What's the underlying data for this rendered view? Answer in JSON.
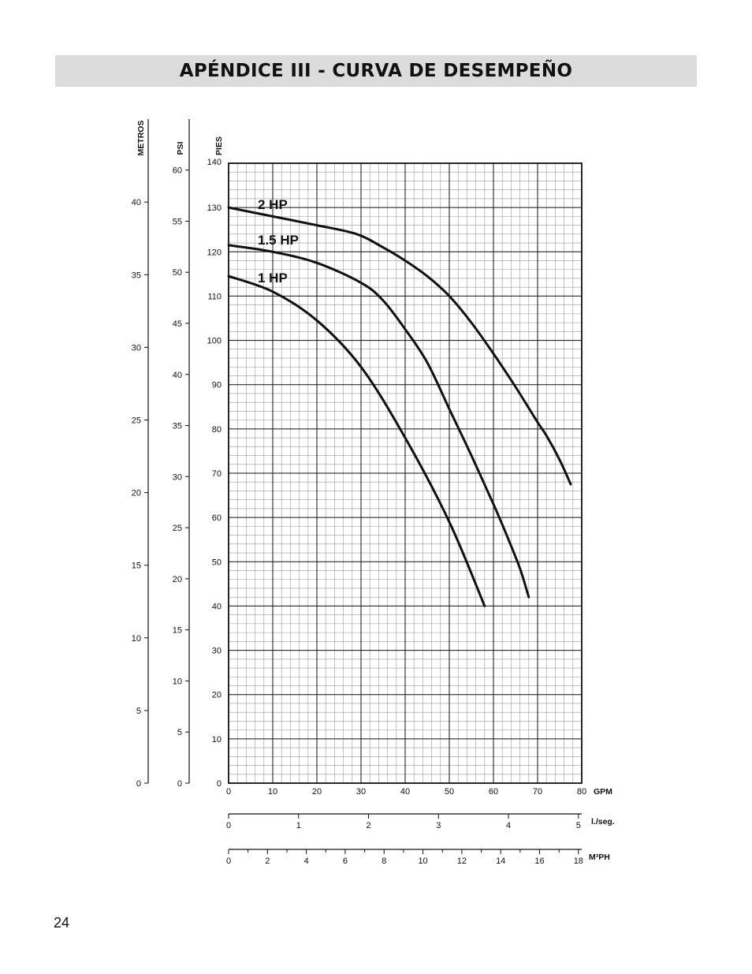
{
  "header": {
    "title": "APÉNDICE III - CURVA DE DESEMPEÑO"
  },
  "page_number": "24",
  "colors": {
    "header_bg": "#dcdcdc",
    "grid_minor": "#999999",
    "grid_major": "#111111",
    "curve": "#111111"
  },
  "chart_data": {
    "type": "line",
    "title": "",
    "xlabel": "GPM",
    "ylabel": "PIES",
    "xlim": [
      0,
      80
    ],
    "ylim": [
      0,
      140
    ],
    "grid": true,
    "x_ticks": [
      "0",
      "10",
      "20",
      "30",
      "40",
      "50",
      "60",
      "70",
      "80"
    ],
    "y_ticks": [
      "0",
      "10",
      "20",
      "30",
      "40",
      "50",
      "60",
      "70",
      "80",
      "90",
      "100",
      "110",
      "120",
      "130",
      "140"
    ],
    "secondary_axes": {
      "metros": {
        "label": "METROS",
        "ticks": [
          "0",
          "5",
          "10",
          "15",
          "20",
          "25",
          "30",
          "35",
          "40"
        ]
      },
      "psi": {
        "label": "PSI",
        "ticks": [
          "0",
          "5",
          "10",
          "15",
          "20",
          "25",
          "30",
          "35",
          "40",
          "45",
          "50",
          "55",
          "60"
        ]
      },
      "lseg": {
        "label": "l./seg.",
        "ticks": [
          "0",
          "1",
          "2",
          "3",
          "4",
          "5"
        ]
      },
      "m3ph": {
        "label": "M³PH",
        "ticks": [
          "0",
          "2",
          "4",
          "6",
          "8",
          "10",
          "12",
          "14",
          "16",
          "18"
        ]
      }
    },
    "series": [
      {
        "name": "2 HP",
        "x": [
          0,
          10,
          20,
          29,
          35,
          40,
          45,
          50,
          55,
          60,
          65,
          70,
          72,
          75,
          77.5
        ],
        "y": [
          130,
          128,
          126,
          124,
          121,
          118,
          114.5,
          110,
          104,
          97,
          89.5,
          81.5,
          78.5,
          73,
          67.5
        ]
      },
      {
        "name": "1.5 HP",
        "x": [
          0,
          10,
          20,
          30,
          35,
          40,
          45,
          50,
          55,
          60,
          63,
          66,
          68
        ],
        "y": [
          121.5,
          120,
          117.5,
          113,
          109,
          102.5,
          95,
          84.5,
          74,
          63,
          56,
          48.5,
          42
        ]
      },
      {
        "name": "1 HP",
        "x": [
          0,
          10,
          20,
          30,
          40,
          50,
          58
        ],
        "y": [
          114.5,
          111,
          104.5,
          94,
          78,
          59,
          40
        ]
      }
    ]
  }
}
